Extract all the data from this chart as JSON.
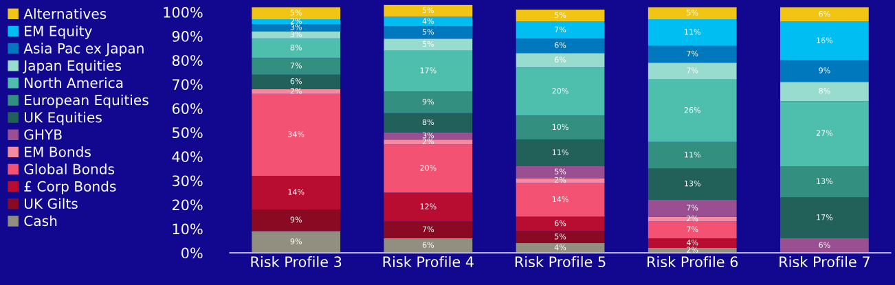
{
  "chart_data": {
    "type": "bar",
    "stacked": true,
    "legend": "left",
    "grid": false,
    "categories": [
      "Risk Profile 3",
      "Risk Profile 4",
      "Risk Profile 5",
      "Risk Profile 6",
      "Risk Profile 7"
    ],
    "ylim": [
      0,
      103
    ],
    "yticks": [
      {
        "value": 0,
        "label": "0%"
      },
      {
        "value": 10,
        "label": "10%"
      },
      {
        "value": 20,
        "label": "20%"
      },
      {
        "value": 30,
        "label": "30%"
      },
      {
        "value": 40,
        "label": "40%"
      },
      {
        "value": 50,
        "label": "50%"
      },
      {
        "value": 60,
        "label": "60%"
      },
      {
        "value": 70,
        "label": "70%"
      },
      {
        "value": 80,
        "label": "80%"
      },
      {
        "value": 90,
        "label": "90%"
      },
      {
        "value": 100,
        "label": "100%"
      }
    ],
    "series": [
      {
        "name": "Cash",
        "color": "#928f80",
        "values": [
          9,
          6,
          4,
          2,
          0
        ],
        "value_labels": [
          "9%",
          "6%",
          "4%",
          "2%",
          null
        ]
      },
      {
        "name": "UK Gilts",
        "color": "#8a0a24",
        "values": [
          9,
          7,
          5,
          0,
          0
        ],
        "value_labels": [
          "9%",
          "7%",
          "5%",
          null,
          null
        ]
      },
      {
        "name": "£ Corp Bonds",
        "color": "#b80c30",
        "values": [
          14,
          12,
          6,
          4,
          0
        ],
        "value_labels": [
          "14%",
          "12%",
          "6%",
          "4%",
          null
        ]
      },
      {
        "name": "Global Bonds",
        "color": "#f45272",
        "values": [
          34,
          20,
          14,
          7,
          0
        ],
        "value_labels": [
          "34%",
          "20%",
          "14%",
          "7%",
          null
        ]
      },
      {
        "name": "EM Bonds",
        "color": "#f68ba0",
        "values": [
          2,
          2,
          2,
          2,
          0
        ],
        "value_labels": [
          "2%",
          "2%",
          "2%",
          "2%",
          null
        ]
      },
      {
        "name": "GHYB",
        "color": "#9a4f93",
        "values": [
          0,
          3,
          5,
          7,
          6
        ],
        "value_labels": [
          null,
          "3%",
          "5%",
          "7%",
          "6%"
        ]
      },
      {
        "name": "UK Equities",
        "color": "#22605a",
        "values": [
          6,
          8,
          11,
          13,
          17
        ],
        "value_labels": [
          "6%",
          "8%",
          "11%",
          "13%",
          "17%"
        ]
      },
      {
        "name": "European Equities",
        "color": "#339080",
        "values": [
          7,
          9,
          10,
          11,
          13
        ],
        "value_labels": [
          "7%",
          "9%",
          "10%",
          "11%",
          "13%"
        ]
      },
      {
        "name": "North America",
        "color": "#4dbfac",
        "values": [
          8,
          17,
          20,
          26,
          27
        ],
        "value_labels": [
          "8%",
          "17%",
          "20%",
          "26%",
          "27%"
        ]
      },
      {
        "name": "Japan Equities",
        "color": "#98dbcf",
        "values": [
          3,
          5,
          6,
          7,
          8
        ],
        "value_labels": [
          "3%",
          "5%",
          "6%",
          "7%",
          "8%"
        ]
      },
      {
        "name": "Asia Pac ex Japan",
        "color": "#0078be",
        "values": [
          3,
          5,
          6,
          7,
          9
        ],
        "value_labels": [
          "3%",
          "5%",
          "6%",
          "7%",
          "9%"
        ]
      },
      {
        "name": "EM Equity",
        "color": "#00bef2",
        "values": [
          2,
          4,
          7,
          11,
          16
        ],
        "value_labels": [
          "2%",
          "4%",
          "7%",
          "11%",
          "16%"
        ]
      },
      {
        "name": "Alternatives",
        "color": "#f2c515",
        "values": [
          5,
          5,
          5,
          5,
          6
        ],
        "value_labels": [
          "5%",
          "5%",
          "5%",
          "5%",
          "6%"
        ]
      }
    ]
  }
}
